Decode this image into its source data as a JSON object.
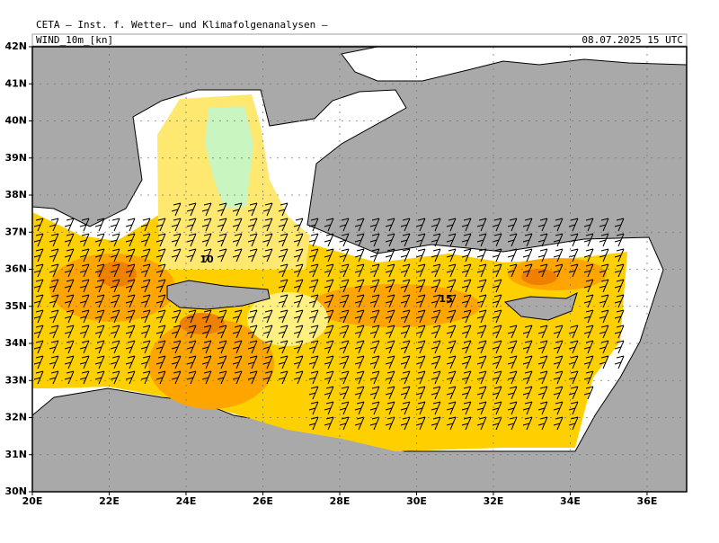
{
  "header": {
    "title": "CETA — Inst. f. Wetter— und Klimafolgenanalysen —",
    "field": "WIND_10m_[kn]",
    "valid_time": "08.07.2025 15 UTC"
  },
  "map": {
    "lat_ticks": [
      {
        "value": 42,
        "label": "42N"
      },
      {
        "value": 41,
        "label": "41N"
      },
      {
        "value": 40,
        "label": "40N"
      },
      {
        "value": 39,
        "label": "39N"
      },
      {
        "value": 38,
        "label": "38N"
      },
      {
        "value": 37,
        "label": "37N"
      },
      {
        "value": 36,
        "label": "36N"
      },
      {
        "value": 35,
        "label": "35N"
      },
      {
        "value": 34,
        "label": "34N"
      },
      {
        "value": 33,
        "label": "33N"
      },
      {
        "value": 32,
        "label": "32N"
      },
      {
        "value": 31,
        "label": "31N"
      },
      {
        "value": 30,
        "label": "30N"
      }
    ],
    "lon_ticks": [
      {
        "value": 20,
        "label": "20E"
      },
      {
        "value": 22,
        "label": "22E"
      },
      {
        "value": 24,
        "label": "24E"
      },
      {
        "value": 26,
        "label": "26E"
      },
      {
        "value": 28,
        "label": "28E"
      },
      {
        "value": 30,
        "label": "30E"
      },
      {
        "value": 32,
        "label": "32E"
      },
      {
        "value": 34,
        "label": "34E"
      },
      {
        "value": 36,
        "label": "36E"
      }
    ],
    "latlim": [
      30,
      42
    ],
    "lonlim": [
      20,
      37.03
    ],
    "contour_labels": [
      10,
      15
    ]
  }
}
